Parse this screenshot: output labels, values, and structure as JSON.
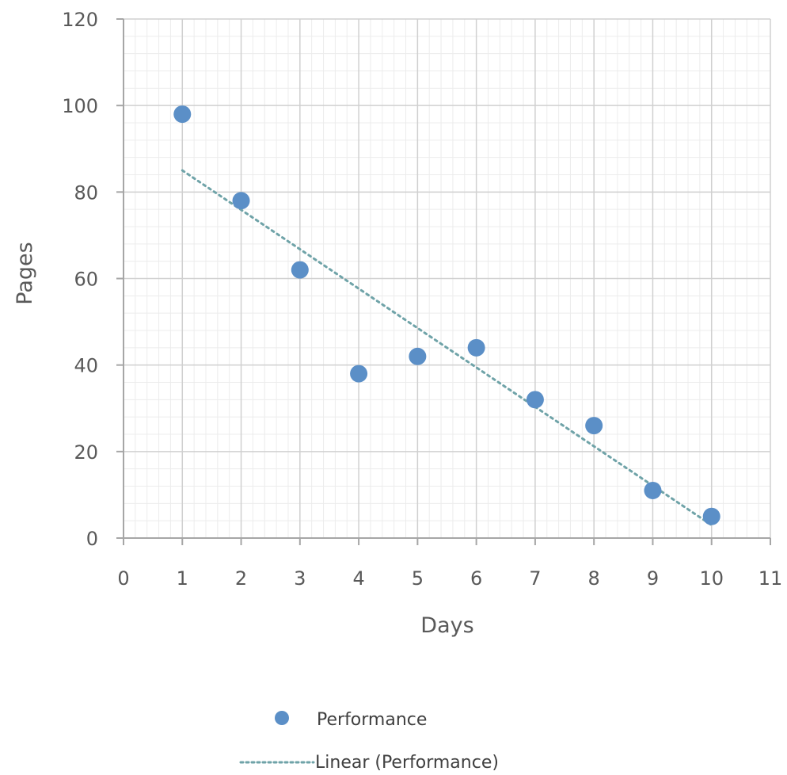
{
  "chart_data": {
    "type": "scatter",
    "title": "",
    "xlabel": "Days",
    "ylabel": "Pages",
    "xlim": [
      0,
      11
    ],
    "ylim": [
      0,
      120
    ],
    "x_ticks": [
      0,
      1,
      2,
      3,
      4,
      5,
      6,
      7,
      8,
      9,
      10,
      11
    ],
    "y_ticks": [
      0,
      20,
      40,
      60,
      80,
      100,
      120
    ],
    "grid": true,
    "minor_grid": true,
    "legend_position": "bottom",
    "series": [
      {
        "name": "Performance",
        "color": "#5b8fc7",
        "marker": "circle",
        "x": [
          1,
          2,
          3,
          4,
          5,
          6,
          7,
          8,
          9,
          10
        ],
        "y": [
          98,
          78,
          62,
          38,
          42,
          44,
          32,
          26,
          11,
          5
        ]
      }
    ],
    "trendline": {
      "name": "Linear (Performance)",
      "type": "linear",
      "style": "dotted",
      "color": "#6fa3a8",
      "from": {
        "x": 1,
        "y": 85
      },
      "to": {
        "x": 10,
        "y": 3
      }
    }
  }
}
